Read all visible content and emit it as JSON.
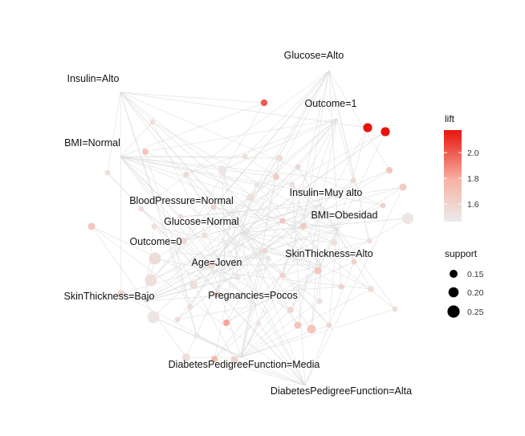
{
  "graph": {
    "labels": [
      {
        "id": "glucose-alto",
        "text": "Glucose=Alto"
      },
      {
        "id": "insulin-alto",
        "text": "Insulin=Alto"
      },
      {
        "id": "outcome-1",
        "text": "Outcome=1"
      },
      {
        "id": "bmi-normal",
        "text": "BMI=Normal"
      },
      {
        "id": "bloodpressure-normal",
        "text": "BloodPressure=Normal"
      },
      {
        "id": "insulin-muy-alto",
        "text": "Insulin=Muy alto"
      },
      {
        "id": "glucose-normal",
        "text": "Glucose=Normal"
      },
      {
        "id": "bmi-obesidad",
        "text": "BMI=Obesidad"
      },
      {
        "id": "outcome-0",
        "text": "Outcome=0"
      },
      {
        "id": "skinthickness-alto",
        "text": "SkinThickness=Alto"
      },
      {
        "id": "age-joven",
        "text": "Age=Joven"
      },
      {
        "id": "skinthickness-bajo",
        "text": "SkinThickness=Bajo"
      },
      {
        "id": "pregnancies-pocos",
        "text": "Pregnancies=Pocos"
      },
      {
        "id": "dpf-media",
        "text": "DiabetesPedigreeFunction=Media"
      },
      {
        "id": "dpf-alta",
        "text": "DiabetesPedigreeFunction=Alta"
      }
    ]
  },
  "legend": {
    "lift": {
      "title": "lift",
      "ticks": [
        "2.0",
        "1.8",
        "1.6"
      ],
      "colors": {
        "high": "#e8140c",
        "low": "#ebebeb"
      }
    },
    "support": {
      "title": "support",
      "ticks": [
        "0.15",
        "0.20",
        "0.25"
      ]
    }
  }
}
